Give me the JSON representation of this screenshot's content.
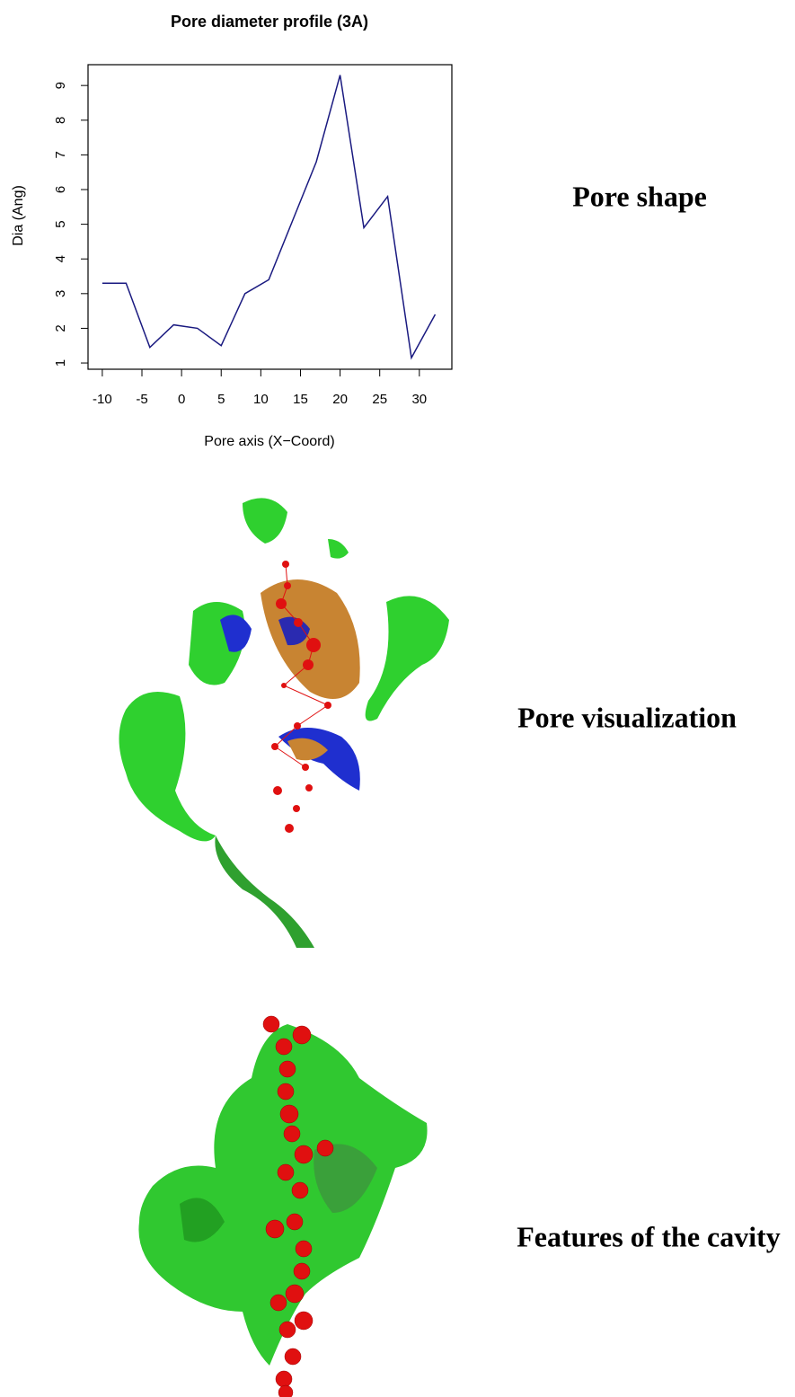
{
  "chart_data": {
    "type": "line",
    "title": "Pore diameter profile (3A)",
    "x_label": "Pore axis (X−Coord)",
    "y_label": "Dia (Ang)",
    "x": [
      -10,
      -7,
      -4,
      -1,
      2,
      5,
      8,
      11,
      14,
      17,
      20,
      23,
      26,
      29,
      32
    ],
    "values": [
      3.3,
      3.3,
      1.45,
      2.1,
      2.0,
      1.5,
      3.0,
      3.4,
      5.1,
      6.8,
      9.3,
      4.9,
      5.8,
      1.15,
      2.4
    ],
    "color": "#1a1a80",
    "xlim": [
      -11.8,
      34.1
    ],
    "ylim": [
      0.82,
      9.6
    ],
    "xticks": [
      -10,
      -5,
      0,
      5,
      10,
      15,
      20,
      25,
      30
    ],
    "yticks": [
      1,
      2,
      3,
      4,
      5,
      6,
      7,
      8,
      9
    ]
  },
  "captions": [
    "Pore shape",
    "Pore visualization",
    "Features of the cavity"
  ]
}
